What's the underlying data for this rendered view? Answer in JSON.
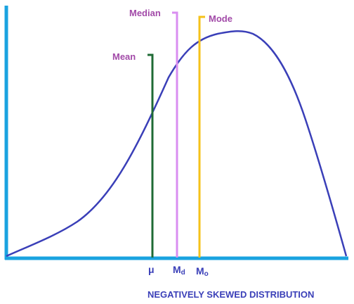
{
  "title": "NEGATIVELY SKEWED DISTRIBUTION",
  "colors": {
    "axis": "#1aa3e0",
    "curve": "#3a3fb8",
    "mean": "#1f6b35",
    "median": "#d98ef0",
    "mode": "#f5c21a",
    "label_text": "#a24aa8",
    "title_text": "#3a3fb8",
    "symbol_text": "#3a3fb8"
  },
  "markers": [
    {
      "id": "mean",
      "label": "Mean",
      "symbol": "μ"
    },
    {
      "id": "median",
      "label": "Median",
      "symbol": "Md"
    },
    {
      "id": "mode",
      "label": "Mode",
      "symbol": "Mo"
    }
  ]
}
